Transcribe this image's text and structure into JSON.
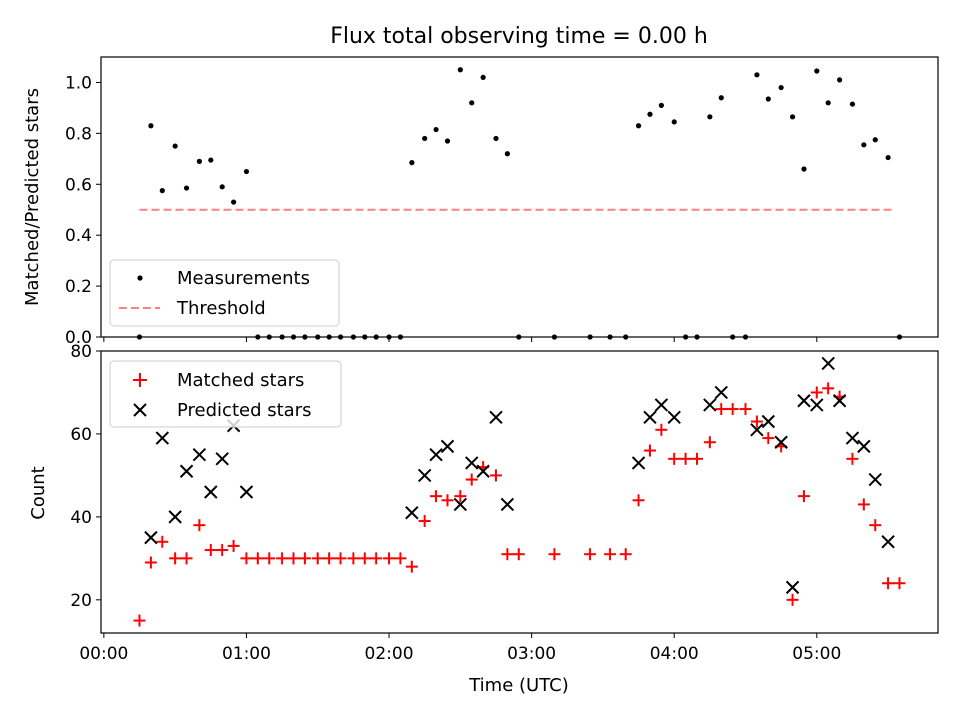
{
  "figure": {
    "title": "Flux total observing time = 0.00 h",
    "xlabel": "Time (UTC)",
    "xticks": [
      "00:00",
      "01:00",
      "02:00",
      "03:00",
      "04:00",
      "05:00"
    ],
    "xtick_values_hours": [
      0,
      1,
      2,
      3,
      4,
      5
    ]
  },
  "chart_data": [
    {
      "type": "scatter",
      "ylabel": "Matched/Predicted stars",
      "xlim": [
        -0.02,
        5.85
      ],
      "ylim": [
        0.0,
        1.1
      ],
      "yticks": [
        "0.0",
        "0.2",
        "0.4",
        "0.6",
        "0.8",
        "1.0"
      ],
      "ytick_values": [
        0.0,
        0.2,
        0.4,
        0.6,
        0.8,
        1.0
      ],
      "legend_position": "lower-left",
      "legend": [
        "Measurements",
        "Threshold"
      ],
      "colors": {
        "measurements": "#000000",
        "threshold": "#ff8080"
      },
      "threshold": {
        "y": 0.5,
        "x": [
          0.25,
          5.55
        ]
      },
      "series": [
        {
          "name": "Measurements",
          "x": [
            0.25,
            0.33,
            0.41,
            0.5,
            0.58,
            0.67,
            0.75,
            0.83,
            0.91,
            1.0,
            1.08,
            1.16,
            1.25,
            1.33,
            1.41,
            1.5,
            1.58,
            1.66,
            1.75,
            1.83,
            1.91,
            2.0,
            2.08,
            2.16,
            2.25,
            2.33,
            2.41,
            2.5,
            2.58,
            2.66,
            2.75,
            2.83,
            2.91,
            3.16,
            3.41,
            3.55,
            3.66,
            3.75,
            3.83,
            3.91,
            4.0,
            4.08,
            4.16,
            4.25,
            4.33,
            4.41,
            4.5,
            4.58,
            4.66,
            4.75,
            4.83,
            4.91,
            5.0,
            5.08,
            5.16,
            5.25,
            5.33,
            5.41,
            5.5,
            5.58
          ],
          "y": [
            0.0,
            0.83,
            0.575,
            0.75,
            0.585,
            0.69,
            0.695,
            0.59,
            0.53,
            0.65,
            0.0,
            0.0,
            0.0,
            0.0,
            0.0,
            0.0,
            0.0,
            0.0,
            0.0,
            0.0,
            0.0,
            0.0,
            0.0,
            0.685,
            0.78,
            0.815,
            0.77,
            1.05,
            0.92,
            1.02,
            0.78,
            0.72,
            0.0,
            0.0,
            0.0,
            0.0,
            0.0,
            0.83,
            0.875,
            0.91,
            0.845,
            0.0,
            0.0,
            0.865,
            0.94,
            0.0,
            0.0,
            1.03,
            0.935,
            0.98,
            0.865,
            0.66,
            1.045,
            0.92,
            1.01,
            0.915,
            0.755,
            0.775,
            0.705,
            0.0
          ]
        }
      ]
    },
    {
      "type": "scatter",
      "ylabel": "Count",
      "xlim": [
        -0.02,
        5.85
      ],
      "ylim": [
        12,
        80
      ],
      "yticks": [
        "20",
        "40",
        "60",
        "80"
      ],
      "ytick_values": [
        20,
        40,
        60,
        80
      ],
      "legend_position": "upper-left",
      "legend": [
        "Matched stars",
        "Predicted stars"
      ],
      "colors": {
        "matched": "#ff0000",
        "predicted": "#000000"
      },
      "series": [
        {
          "name": "Matched stars",
          "marker": "+",
          "x": [
            0.25,
            0.33,
            0.41,
            0.5,
            0.58,
            0.67,
            0.75,
            0.83,
            0.91,
            1.0,
            1.08,
            1.16,
            1.25,
            1.33,
            1.41,
            1.5,
            1.58,
            1.66,
            1.75,
            1.83,
            1.91,
            2.0,
            2.08,
            2.16,
            2.25,
            2.33,
            2.41,
            2.5,
            2.58,
            2.66,
            2.75,
            2.83,
            2.91,
            3.16,
            3.41,
            3.55,
            3.66,
            3.75,
            3.83,
            3.91,
            4.0,
            4.08,
            4.16,
            4.25,
            4.33,
            4.41,
            4.5,
            4.58,
            4.66,
            4.75,
            4.83,
            4.91,
            5.0,
            5.08,
            5.16,
            5.25,
            5.33,
            5.41,
            5.5,
            5.58
          ],
          "y": [
            15,
            29,
            34,
            30,
            30,
            38,
            32,
            32,
            33,
            30,
            30,
            30,
            30,
            30,
            30,
            30,
            30,
            30,
            30,
            30,
            30,
            30,
            30,
            28,
            39,
            45,
            44,
            45,
            49,
            52,
            50,
            31,
            31,
            31,
            31,
            31,
            31,
            44,
            56,
            61,
            54,
            54,
            54,
            58,
            66,
            66,
            66,
            63,
            59,
            57,
            20,
            45,
            70,
            71,
            69,
            54,
            43,
            38,
            24,
            24
          ]
        },
        {
          "name": "Predicted stars",
          "marker": "x",
          "x": [
            0.33,
            0.41,
            0.5,
            0.58,
            0.67,
            0.75,
            0.83,
            0.91,
            1.0,
            2.16,
            2.25,
            2.33,
            2.41,
            2.5,
            2.58,
            2.66,
            2.75,
            2.83,
            3.75,
            3.83,
            3.91,
            4.0,
            4.25,
            4.33,
            4.58,
            4.66,
            4.75,
            4.83,
            4.91,
            5.0,
            5.08,
            5.16,
            5.25,
            5.33,
            5.41,
            5.5
          ],
          "y": [
            35,
            59,
            40,
            51,
            55,
            46,
            54,
            62,
            46,
            41,
            50,
            55,
            57,
            43,
            53,
            51,
            64,
            43,
            53,
            64,
            67,
            64,
            67,
            70,
            61,
            63,
            58,
            23,
            68,
            67,
            77,
            68,
            59,
            57,
            49,
            34
          ]
        }
      ]
    }
  ]
}
